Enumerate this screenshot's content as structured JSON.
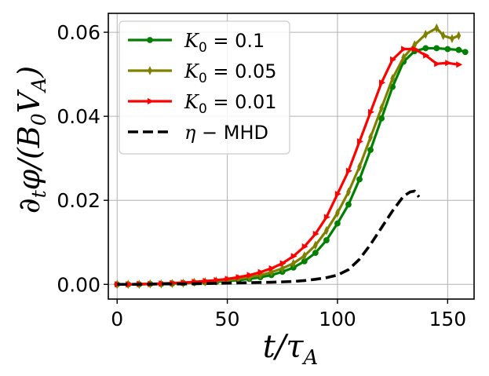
{
  "chart_data": {
    "type": "line",
    "xlabel": "t/τ_A",
    "ylabel": "∂_t φ/(B_0 V_A)",
    "xlim": [
      -4,
      162
    ],
    "ylim": [
      -0.0035,
      0.0645
    ],
    "x_ticks": [
      0,
      50,
      100,
      150
    ],
    "x_tick_labels": [
      "0",
      "50",
      "100",
      "150"
    ],
    "y_ticks": [
      0.0,
      0.02,
      0.04,
      0.06
    ],
    "y_tick_labels": [
      "0.00",
      "0.02",
      "0.04",
      "0.06"
    ],
    "grid": true,
    "legend_position": "top-left",
    "series": [
      {
        "name": "K_0 = 0.1",
        "label_main": "K",
        "label_sub": "0",
        "label_rest": " = 0.1",
        "color": "#008000",
        "linestyle": "solid",
        "marker": "circle",
        "x": [
          0,
          5,
          10,
          15,
          20,
          25,
          30,
          35,
          40,
          45,
          50,
          55,
          60,
          65,
          70,
          75,
          80,
          85,
          90,
          95,
          100,
          105,
          110,
          115,
          120,
          125,
          130,
          135,
          140,
          145,
          150,
          155,
          158
        ],
        "y": [
          0.0,
          0.0,
          0.0,
          0.0001,
          0.0001,
          0.0002,
          0.0003,
          0.0004,
          0.0005,
          0.0006,
          0.0008,
          0.001,
          0.0013,
          0.0017,
          0.0022,
          0.003,
          0.004,
          0.0055,
          0.0075,
          0.0105,
          0.0145,
          0.019,
          0.025,
          0.032,
          0.0395,
          0.047,
          0.053,
          0.0555,
          0.0562,
          0.0562,
          0.056,
          0.0558,
          0.0553
        ]
      },
      {
        "name": "K_0 = 0.05",
        "label_main": "K",
        "label_sub": "0",
        "label_rest": " = 0.05",
        "color": "#808000",
        "linestyle": "solid",
        "marker": "thin-diamond",
        "x": [
          0,
          5,
          10,
          15,
          20,
          25,
          30,
          35,
          40,
          45,
          50,
          55,
          60,
          65,
          70,
          75,
          80,
          85,
          90,
          95,
          100,
          105,
          110,
          115,
          120,
          125,
          130,
          135,
          140,
          145,
          148,
          152,
          155
        ],
        "y": [
          0.0,
          0.0,
          0.0,
          0.0001,
          0.0001,
          0.0002,
          0.0003,
          0.0005,
          0.0006,
          0.0008,
          0.001,
          0.0013,
          0.0017,
          0.0022,
          0.0029,
          0.0038,
          0.005,
          0.0068,
          0.0093,
          0.0128,
          0.017,
          0.022,
          0.028,
          0.035,
          0.042,
          0.049,
          0.054,
          0.057,
          0.0595,
          0.061,
          0.0592,
          0.0585,
          0.0592
        ]
      },
      {
        "name": "K_0 = 0.01",
        "label_main": "K",
        "label_sub": "0",
        "label_rest": " = 0.01",
        "color": "#ff0000",
        "linestyle": "solid",
        "marker": "triangle-right",
        "x": [
          0,
          5,
          10,
          15,
          20,
          25,
          30,
          35,
          40,
          45,
          50,
          55,
          60,
          65,
          70,
          75,
          80,
          85,
          90,
          95,
          100,
          105,
          110,
          115,
          120,
          125,
          130,
          135,
          140,
          145,
          150,
          155
        ],
        "y": [
          0.0,
          0.0,
          0.0001,
          0.0001,
          0.0002,
          0.0003,
          0.0004,
          0.0006,
          0.0008,
          0.001,
          0.0013,
          0.0017,
          0.0022,
          0.0029,
          0.0038,
          0.005,
          0.0067,
          0.009,
          0.012,
          0.016,
          0.0215,
          0.027,
          0.034,
          0.041,
          0.048,
          0.0535,
          0.056,
          0.056,
          0.0545,
          0.0525,
          0.0527,
          0.0523
        ]
      },
      {
        "name": "η − MHD",
        "label_main": "η",
        "label_sub": "",
        "label_rest": " − MHD",
        "color": "#000000",
        "linestyle": "dashed",
        "marker": "none",
        "x": [
          0,
          10,
          20,
          30,
          40,
          50,
          60,
          70,
          80,
          85,
          90,
          95,
          100,
          105,
          110,
          115,
          120,
          125,
          130,
          133,
          135,
          137
        ],
        "y": [
          0.0,
          0.0,
          0.0001,
          0.0001,
          0.0002,
          0.0003,
          0.0004,
          0.0005,
          0.0007,
          0.0009,
          0.0012,
          0.0016,
          0.0022,
          0.0035,
          0.006,
          0.0095,
          0.0135,
          0.0175,
          0.021,
          0.022,
          0.0222,
          0.0208
        ]
      }
    ]
  }
}
